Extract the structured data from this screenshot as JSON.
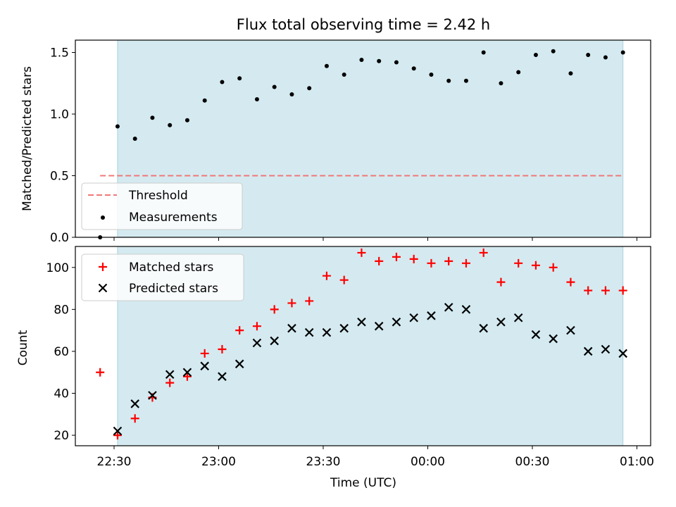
{
  "chart_data": [
    {
      "type": "scatter",
      "title": "Flux total observing time = 2.42 h",
      "xlabel": "",
      "ylabel": "Matched/Predicted stars",
      "ylim": [
        0,
        1.6
      ],
      "yticks": [
        0.0,
        0.5,
        1.0,
        1.5
      ],
      "ytick_labels": [
        "0.0",
        "0.5",
        "1.0",
        "1.5"
      ],
      "shaded_span": {
        "from": "22:31",
        "to": "00:56",
        "color": "#d4eaf0"
      },
      "threshold": {
        "name": "Threshold",
        "value": 0.5,
        "color": "#f07878"
      },
      "legend": {
        "position": "lower-left",
        "entries": [
          "Threshold",
          "Measurements"
        ]
      },
      "series": [
        {
          "name": "Measurements",
          "color": "#000000",
          "marker": "dot",
          "x": [
            "22:26",
            "22:31",
            "22:36",
            "22:41",
            "22:46",
            "22:51",
            "22:56",
            "23:01",
            "23:06",
            "23:11",
            "23:16",
            "23:21",
            "23:26",
            "23:31",
            "23:36",
            "23:41",
            "23:46",
            "23:51",
            "23:56",
            "00:01",
            "00:06",
            "00:11",
            "00:16",
            "00:21",
            "00:26",
            "00:31",
            "00:36",
            "00:41",
            "00:46",
            "00:51",
            "00:56"
          ],
          "y": [
            0.0,
            0.9,
            0.8,
            0.97,
            0.91,
            0.95,
            1.11,
            1.26,
            1.29,
            1.12,
            1.22,
            1.16,
            1.21,
            1.39,
            1.32,
            1.44,
            1.43,
            1.42,
            1.37,
            1.32,
            1.27,
            1.27,
            1.5,
            1.25,
            1.34,
            1.48,
            1.51,
            1.33,
            1.48,
            1.46,
            1.5
          ]
        }
      ]
    },
    {
      "type": "scatter",
      "title": "",
      "xlabel": "Time (UTC)",
      "ylabel": "Count",
      "ylim": [
        15,
        110
      ],
      "yticks": [
        20,
        40,
        60,
        80,
        100
      ],
      "xticks": [
        "22:30",
        "23:00",
        "23:30",
        "00:00",
        "00:30",
        "01:00"
      ],
      "shaded_span": {
        "from": "22:31",
        "to": "00:56",
        "color": "#d4eaf0"
      },
      "legend": {
        "position": "top-left",
        "entries": [
          "Matched stars",
          "Predicted stars"
        ]
      },
      "series": [
        {
          "name": "Matched stars",
          "color": "#ff0000",
          "marker": "plus",
          "x": [
            "22:26",
            "22:31",
            "22:36",
            "22:41",
            "22:46",
            "22:51",
            "22:56",
            "23:01",
            "23:06",
            "23:11",
            "23:16",
            "23:21",
            "23:26",
            "23:31",
            "23:36",
            "23:41",
            "23:46",
            "23:51",
            "23:56",
            "00:01",
            "00:06",
            "00:11",
            "00:16",
            "00:21",
            "00:26",
            "00:31",
            "00:36",
            "00:41",
            "00:46",
            "00:51",
            "00:56"
          ],
          "y": [
            50,
            20,
            28,
            38,
            45,
            48,
            59,
            61,
            70,
            72,
            80,
            83,
            84,
            96,
            94,
            107,
            103,
            105,
            104,
            102,
            103,
            102,
            107,
            93,
            102,
            101,
            100,
            93,
            89,
            89,
            89
          ]
        },
        {
          "name": "Predicted stars",
          "color": "#000000",
          "marker": "x",
          "x": [
            "22:31",
            "22:36",
            "22:41",
            "22:46",
            "22:51",
            "22:56",
            "23:01",
            "23:06",
            "23:11",
            "23:16",
            "23:21",
            "23:26",
            "23:31",
            "23:36",
            "23:41",
            "23:46",
            "23:51",
            "23:56",
            "00:01",
            "00:06",
            "00:11",
            "00:16",
            "00:21",
            "00:26",
            "00:31",
            "00:36",
            "00:41",
            "00:46",
            "00:51",
            "00:56"
          ],
          "y": [
            22,
            35,
            39,
            49,
            50,
            53,
            48,
            54,
            64,
            65,
            71,
            69,
            69,
            71,
            74,
            72,
            74,
            76,
            77,
            81,
            80,
            71,
            74,
            76,
            68,
            66,
            70,
            60,
            61,
            59
          ]
        }
      ]
    }
  ]
}
